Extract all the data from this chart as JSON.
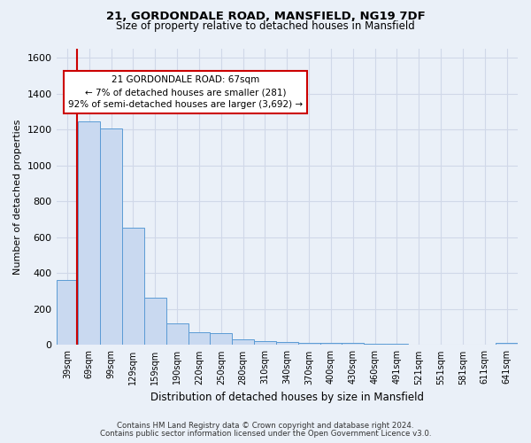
{
  "title1": "21, GORDONDALE ROAD, MANSFIELD, NG19 7DF",
  "title2": "Size of property relative to detached houses in Mansfield",
  "xlabel": "Distribution of detached houses by size in Mansfield",
  "ylabel": "Number of detached properties",
  "categories": [
    "39sqm",
    "69sqm",
    "99sqm",
    "129sqm",
    "159sqm",
    "190sqm",
    "220sqm",
    "250sqm",
    "280sqm",
    "310sqm",
    "340sqm",
    "370sqm",
    "400sqm",
    "430sqm",
    "460sqm",
    "491sqm",
    "521sqm",
    "551sqm",
    "581sqm",
    "611sqm",
    "641sqm"
  ],
  "values": [
    360,
    1245,
    1205,
    655,
    265,
    120,
    70,
    68,
    33,
    22,
    15,
    12,
    10,
    10,
    8,
    5,
    3,
    2,
    1,
    1,
    12
  ],
  "bar_color": "#c9d9f0",
  "bar_edge_color": "#5b9bd5",
  "annotation_line1": "21 GORDONDALE ROAD: 67sqm",
  "annotation_line2": "← 7% of detached houses are smaller (281)",
  "annotation_line3": "92% of semi-detached houses are larger (3,692) →",
  "annotation_box_color": "#ffffff",
  "annotation_box_edge_color": "#cc0000",
  "property_line_color": "#cc0000",
  "ylim": [
    0,
    1650
  ],
  "yticks": [
    0,
    200,
    400,
    600,
    800,
    1000,
    1200,
    1400,
    1600
  ],
  "grid_color": "#d0d8e8",
  "background_color": "#eaf0f8",
  "footer1": "Contains HM Land Registry data © Crown copyright and database right 2024.",
  "footer2": "Contains public sector information licensed under the Open Government Licence v3.0."
}
